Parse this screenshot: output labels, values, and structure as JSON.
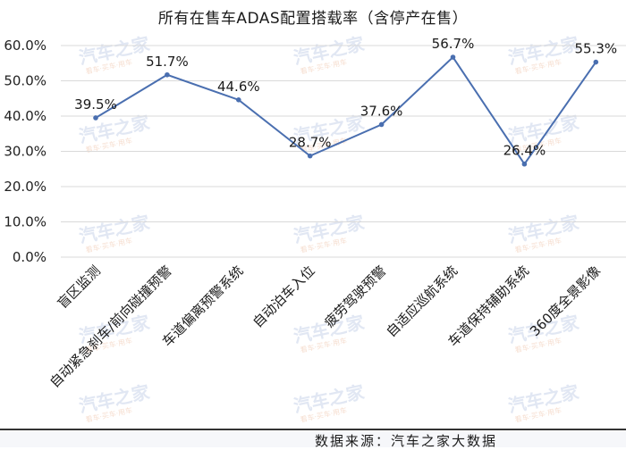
{
  "chart_data": {
    "type": "line",
    "title": "所有在售车ADAS配置搭载率（含停产在售）",
    "xlabel": "",
    "ylabel": "",
    "categories": [
      "盲区监测",
      "自动紧急刹车/前向碰撞预警",
      "车道偏离预警系统",
      "自动泊车入位",
      "疲劳驾驶预警",
      "自适应巡航系统",
      "车道保持辅助系统",
      "360度全景影像"
    ],
    "series": [
      {
        "name": "搭载率",
        "values": [
          39.5,
          51.7,
          44.6,
          28.7,
          37.6,
          56.7,
          26.4,
          55.3
        ]
      }
    ],
    "data_labels": [
      "39.5%",
      "51.7%",
      "44.6%",
      "28.7%",
      "37.6%",
      "56.7%",
      "26.4%",
      "55.3%"
    ],
    "ylim": [
      0,
      60
    ],
    "yticks": [
      "0.0%",
      "10.0%",
      "20.0%",
      "30.0%",
      "40.0%",
      "50.0%",
      "60.0%"
    ],
    "grid": true,
    "legend": "none",
    "line_color": "#4a6fb0"
  },
  "title": "所有在售车ADAS配置搭载率（含停产在售）",
  "footer": {
    "source": "数据来源：汽车之家大数据"
  },
  "watermark": {
    "text": "汽车之家",
    "subtext": "看车·买车·用车"
  }
}
